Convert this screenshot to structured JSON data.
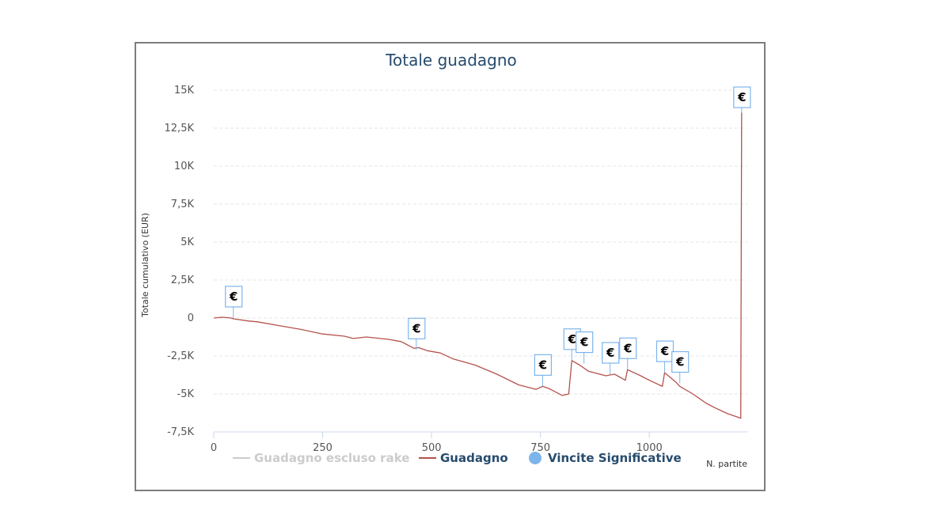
{
  "chart_data": {
    "type": "line",
    "title": "Totale guadagno",
    "xlabel": "N. partite",
    "ylabel": "Totale cumulativo (EUR)",
    "xlim": [
      0,
      1225
    ],
    "ylim": [
      -7500,
      15000
    ],
    "x_ticks": [
      0,
      250,
      500,
      750,
      1000
    ],
    "x_tick_labels": [
      "0",
      "250",
      "500",
      "750",
      "1000"
    ],
    "y_ticks": [
      15000,
      12500,
      10000,
      7500,
      5000,
      2500,
      0,
      -2500,
      -5000,
      -7500
    ],
    "y_tick_labels": [
      "15K",
      "12,5K",
      "10K",
      "7,5K",
      "5K",
      "2,5K",
      "0",
      "-2,5K",
      "-5K",
      "-7,5K"
    ],
    "grid": "horizontal dashed",
    "legend_position": "bottom",
    "legend": [
      {
        "name": "Guadagno escluso rake",
        "color": "#cccccc",
        "symbol": "line",
        "hidden": true
      },
      {
        "name": "Guadagno",
        "color": "#b5524d",
        "symbol": "line",
        "hidden": false
      },
      {
        "name": "Vincite Significative",
        "color": "#7cb5ec",
        "symbol": "circle",
        "hidden": false
      }
    ],
    "series": [
      {
        "name": "Guadagno",
        "color": "#b5524d",
        "points": [
          [
            0,
            0
          ],
          [
            20,
            50
          ],
          [
            40,
            0
          ],
          [
            45,
            -50
          ],
          [
            80,
            -200
          ],
          [
            100,
            -250
          ],
          [
            150,
            -500
          ],
          [
            200,
            -750
          ],
          [
            250,
            -1050
          ],
          [
            300,
            -1200
          ],
          [
            320,
            -1350
          ],
          [
            350,
            -1250
          ],
          [
            400,
            -1400
          ],
          [
            430,
            -1550
          ],
          [
            460,
            -2000
          ],
          [
            470,
            -1950
          ],
          [
            490,
            -2150
          ],
          [
            520,
            -2300
          ],
          [
            550,
            -2700
          ],
          [
            600,
            -3100
          ],
          [
            650,
            -3700
          ],
          [
            700,
            -4400
          ],
          [
            740,
            -4700
          ],
          [
            755,
            -4500
          ],
          [
            770,
            -4650
          ],
          [
            800,
            -5100
          ],
          [
            815,
            -5000
          ],
          [
            822,
            -2800
          ],
          [
            840,
            -3100
          ],
          [
            860,
            -3500
          ],
          [
            900,
            -3800
          ],
          [
            920,
            -3700
          ],
          [
            945,
            -4100
          ],
          [
            950,
            -3400
          ],
          [
            980,
            -3800
          ],
          [
            1000,
            -4100
          ],
          [
            1030,
            -4500
          ],
          [
            1035,
            -3600
          ],
          [
            1060,
            -4200
          ],
          [
            1070,
            -4500
          ],
          [
            1100,
            -5000
          ],
          [
            1130,
            -5600
          ],
          [
            1150,
            -5900
          ],
          [
            1180,
            -6300
          ],
          [
            1200,
            -6500
          ],
          [
            1210,
            -6600
          ],
          [
            1212,
            13500
          ],
          [
            1213,
            13500
          ]
        ]
      }
    ],
    "flags": [
      {
        "x": 45,
        "y": 0,
        "label": "€"
      },
      {
        "x": 465,
        "y": -2100,
        "label": "€"
      },
      {
        "x": 755,
        "y": -4500,
        "label": "€"
      },
      {
        "x": 822,
        "y": -2800,
        "label": "€"
      },
      {
        "x": 850,
        "y": -3000,
        "label": "€"
      },
      {
        "x": 910,
        "y": -3700,
        "label": "€"
      },
      {
        "x": 950,
        "y": -3400,
        "label": "€"
      },
      {
        "x": 1035,
        "y": -3600,
        "label": "€"
      },
      {
        "x": 1070,
        "y": -4300,
        "label": "€"
      },
      {
        "x": 1212,
        "y": 13500,
        "label": "€"
      }
    ]
  }
}
